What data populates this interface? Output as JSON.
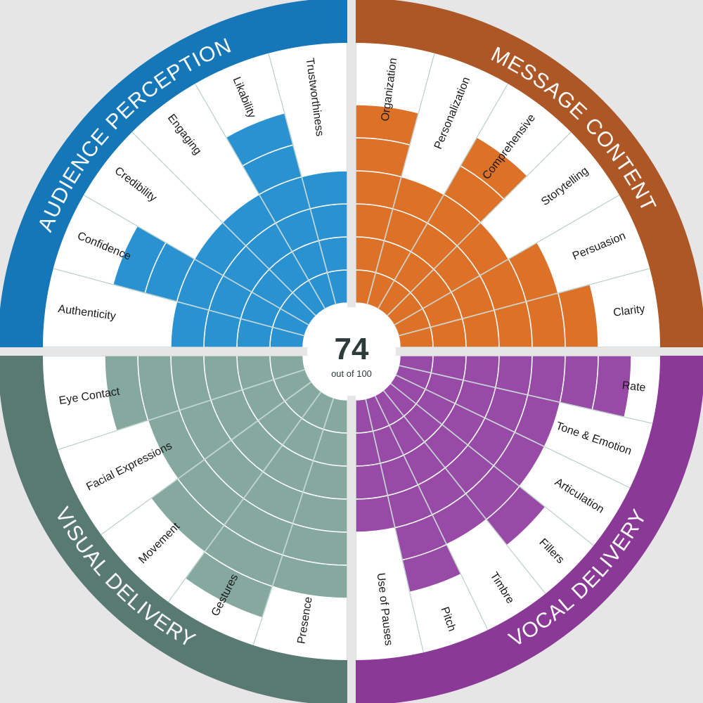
{
  "score": {
    "value": "74",
    "subtitle": "out of 100"
  },
  "chart_data": {
    "type": "polar-bar",
    "max_level": 5,
    "quadrants": [
      {
        "name": "AUDIENCE PERCEPTION",
        "color": "#1577b8",
        "bar_color": "#2b92d2",
        "items": [
          {
            "label": "Trustworthiness",
            "value": 4
          },
          {
            "label": "Likability",
            "value": 6
          },
          {
            "label": "Engaging",
            "value": 4
          },
          {
            "label": "Credibility",
            "value": 4
          },
          {
            "label": "Confidence",
            "value": 6
          },
          {
            "label": "Authenticity",
            "value": 4
          }
        ]
      },
      {
        "name": "MESSAGE CONTENT",
        "color": "#ad5626",
        "bar_color": "#dd7128",
        "items": [
          {
            "label": "Organization",
            "value": 6
          },
          {
            "label": "Personalization",
            "value": 4
          },
          {
            "label": "Comprehensive",
            "value": 6
          },
          {
            "label": "Storytelling",
            "value": 4
          },
          {
            "label": "Persuasion",
            "value": 5
          },
          {
            "label": "Clarity",
            "value": 6
          }
        ]
      },
      {
        "name": "VOCAL DELIVERY",
        "color": "#8a3a96",
        "bar_color": "#974aa6",
        "items": [
          {
            "label": "Rate",
            "value": 7
          },
          {
            "label": "Tone & Emotion",
            "value": 5
          },
          {
            "label": "Articulation",
            "value": 5
          },
          {
            "label": "Fillers",
            "value": 6
          },
          {
            "label": "Timbre",
            "value": 5
          },
          {
            "label": "Pitch",
            "value": 6
          },
          {
            "label": "Use of Pauses",
            "value": 4
          }
        ]
      },
      {
        "name": "VISUAL DELIVERY",
        "color": "#587a72",
        "bar_color": "#85a89f",
        "items": [
          {
            "label": "Presence",
            "value": 6
          },
          {
            "label": "Gestures",
            "value": 7
          },
          {
            "label": "Movement",
            "value": 6
          },
          {
            "label": "Facial Expressions",
            "value": 5
          },
          {
            "label": "Eye Contact",
            "value": 6
          }
        ]
      }
    ]
  }
}
